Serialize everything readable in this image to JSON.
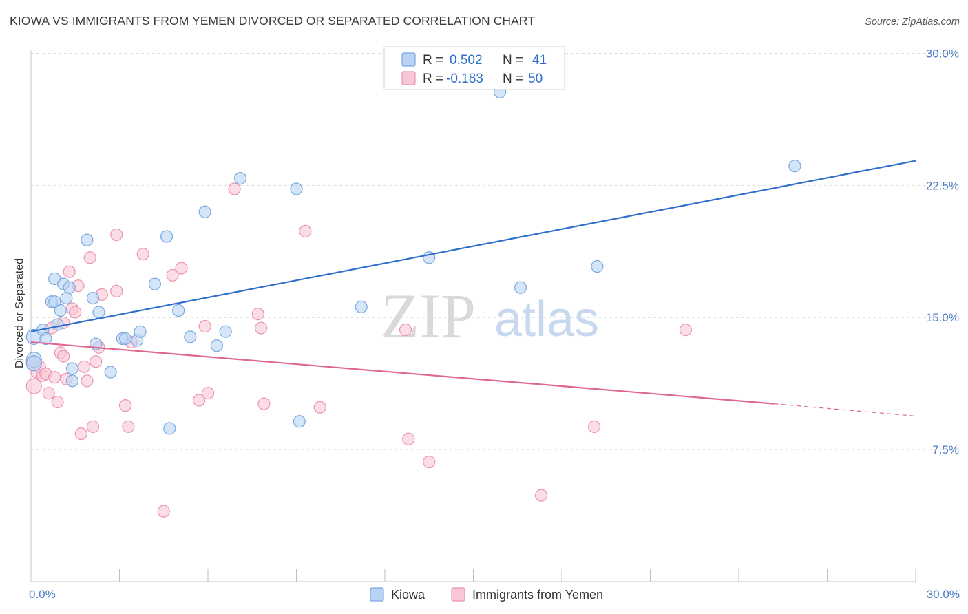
{
  "title": "KIOWA VS IMMIGRANTS FROM YEMEN DIVORCED OR SEPARATED CORRELATION CHART",
  "source": "Source: ZipAtlas.com",
  "watermark": {
    "part1": "ZIP",
    "part2": "atlas"
  },
  "colors": {
    "kiowa_fill": "#b9d3f3",
    "kiowa_stroke": "#7aa7e0",
    "kiowa_line": "#2f6fcc",
    "yemen_fill": "#f8c6d5",
    "yemen_stroke": "#ec93b0",
    "yemen_line": "#e0668f",
    "tick_text": "#4a7cc9",
    "grid": "#dddddd"
  },
  "legend": {
    "rows": [
      {
        "r_label": "R =",
        "r_value": "0.502",
        "n_label": "N =",
        "n_value": "41"
      },
      {
        "r_label": "R =",
        "r_value": "-0.183",
        "n_label": "N =",
        "n_value": "50"
      }
    ]
  },
  "bottom_legend": [
    "Kiowa",
    "Immigrants from Yemen"
  ],
  "chart_data": {
    "type": "scatter",
    "title": "KIOWA VS IMMIGRANTS FROM YEMEN DIVORCED OR SEPARATED CORRELATION CHART",
    "xlabel": "",
    "ylabel": "Divorced or Separated",
    "xlim": [
      0,
      30
    ],
    "ylim": [
      0,
      30.8
    ],
    "x_tick_labels": [
      "0.0%",
      "30.0%"
    ],
    "y_ticks": [
      7.5,
      15.0,
      22.5,
      30.0
    ],
    "y_tick_labels": [
      "7.5%",
      "15.0%",
      "22.5%",
      "30.0%"
    ],
    "grid": true,
    "legend_position": "top-center",
    "series": [
      {
        "name": "Kiowa",
        "r": 0.502,
        "n": 41,
        "trend": {
          "x": [
            0,
            30
          ],
          "y": [
            14.2,
            23.9
          ]
        },
        "points": [
          [
            0.1,
            12.6
          ],
          [
            0.1,
            13.9
          ],
          [
            0.4,
            14.3
          ],
          [
            0.5,
            13.8
          ],
          [
            0.7,
            15.9
          ],
          [
            0.8,
            15.9
          ],
          [
            0.8,
            17.2
          ],
          [
            0.9,
            14.6
          ],
          [
            1.0,
            15.4
          ],
          [
            1.1,
            16.9
          ],
          [
            1.2,
            16.1
          ],
          [
            1.3,
            16.7
          ],
          [
            1.4,
            12.1
          ],
          [
            1.4,
            11.4
          ],
          [
            1.9,
            19.4
          ],
          [
            2.1,
            16.1
          ],
          [
            2.2,
            13.5
          ],
          [
            2.3,
            15.3
          ],
          [
            2.7,
            11.9
          ],
          [
            3.1,
            13.8
          ],
          [
            3.2,
            13.8
          ],
          [
            3.6,
            13.7
          ],
          [
            3.7,
            14.2
          ],
          [
            4.2,
            16.9
          ],
          [
            4.6,
            19.6
          ],
          [
            4.7,
            8.7
          ],
          [
            5.0,
            15.4
          ],
          [
            5.4,
            13.9
          ],
          [
            5.9,
            21.0
          ],
          [
            6.3,
            13.4
          ],
          [
            6.6,
            14.2
          ],
          [
            7.1,
            22.9
          ],
          [
            9.0,
            22.3
          ],
          [
            9.1,
            9.1
          ],
          [
            11.2,
            15.6
          ],
          [
            13.5,
            18.4
          ],
          [
            15.9,
            27.8
          ],
          [
            16.6,
            16.7
          ],
          [
            19.2,
            17.9
          ],
          [
            25.9,
            23.6
          ],
          [
            0.1,
            12.4
          ]
        ]
      },
      {
        "name": "Immigrants from Yemen",
        "r": -0.183,
        "n": 50,
        "trend": {
          "x": [
            0,
            25.2
          ],
          "y": [
            13.6,
            10.1
          ]
        },
        "trend_dashed": {
          "x": [
            25.2,
            30
          ],
          "y": [
            10.1,
            9.4
          ]
        },
        "points": [
          [
            0.1,
            11.1
          ],
          [
            0.1,
            12.4
          ],
          [
            0.2,
            11.9
          ],
          [
            0.3,
            12.2
          ],
          [
            0.4,
            11.7
          ],
          [
            0.5,
            11.8
          ],
          [
            0.6,
            10.7
          ],
          [
            0.7,
            14.4
          ],
          [
            0.8,
            11.6
          ],
          [
            0.9,
            10.2
          ],
          [
            1.0,
            13.0
          ],
          [
            1.1,
            14.7
          ],
          [
            1.1,
            12.8
          ],
          [
            1.2,
            11.5
          ],
          [
            1.3,
            17.6
          ],
          [
            1.4,
            15.5
          ],
          [
            1.5,
            15.3
          ],
          [
            1.6,
            16.8
          ],
          [
            1.7,
            8.4
          ],
          [
            1.8,
            12.2
          ],
          [
            1.9,
            11.4
          ],
          [
            2.0,
            18.4
          ],
          [
            2.1,
            8.8
          ],
          [
            2.2,
            12.5
          ],
          [
            2.3,
            13.3
          ],
          [
            2.4,
            16.3
          ],
          [
            2.9,
            19.7
          ],
          [
            2.9,
            16.5
          ],
          [
            3.2,
            10.0
          ],
          [
            3.3,
            8.8
          ],
          [
            3.4,
            13.6
          ],
          [
            3.8,
            18.6
          ],
          [
            4.5,
            4.0
          ],
          [
            4.8,
            17.4
          ],
          [
            5.1,
            17.8
          ],
          [
            5.7,
            10.3
          ],
          [
            5.9,
            14.5
          ],
          [
            6.0,
            10.7
          ],
          [
            6.9,
            22.3
          ],
          [
            7.7,
            15.2
          ],
          [
            7.8,
            14.4
          ],
          [
            7.9,
            10.1
          ],
          [
            9.3,
            19.9
          ],
          [
            9.8,
            9.9
          ],
          [
            12.7,
            14.3
          ],
          [
            12.8,
            8.1
          ],
          [
            13.5,
            6.8
          ],
          [
            17.3,
            4.9
          ],
          [
            19.1,
            8.8
          ],
          [
            22.2,
            14.3
          ]
        ]
      }
    ]
  }
}
